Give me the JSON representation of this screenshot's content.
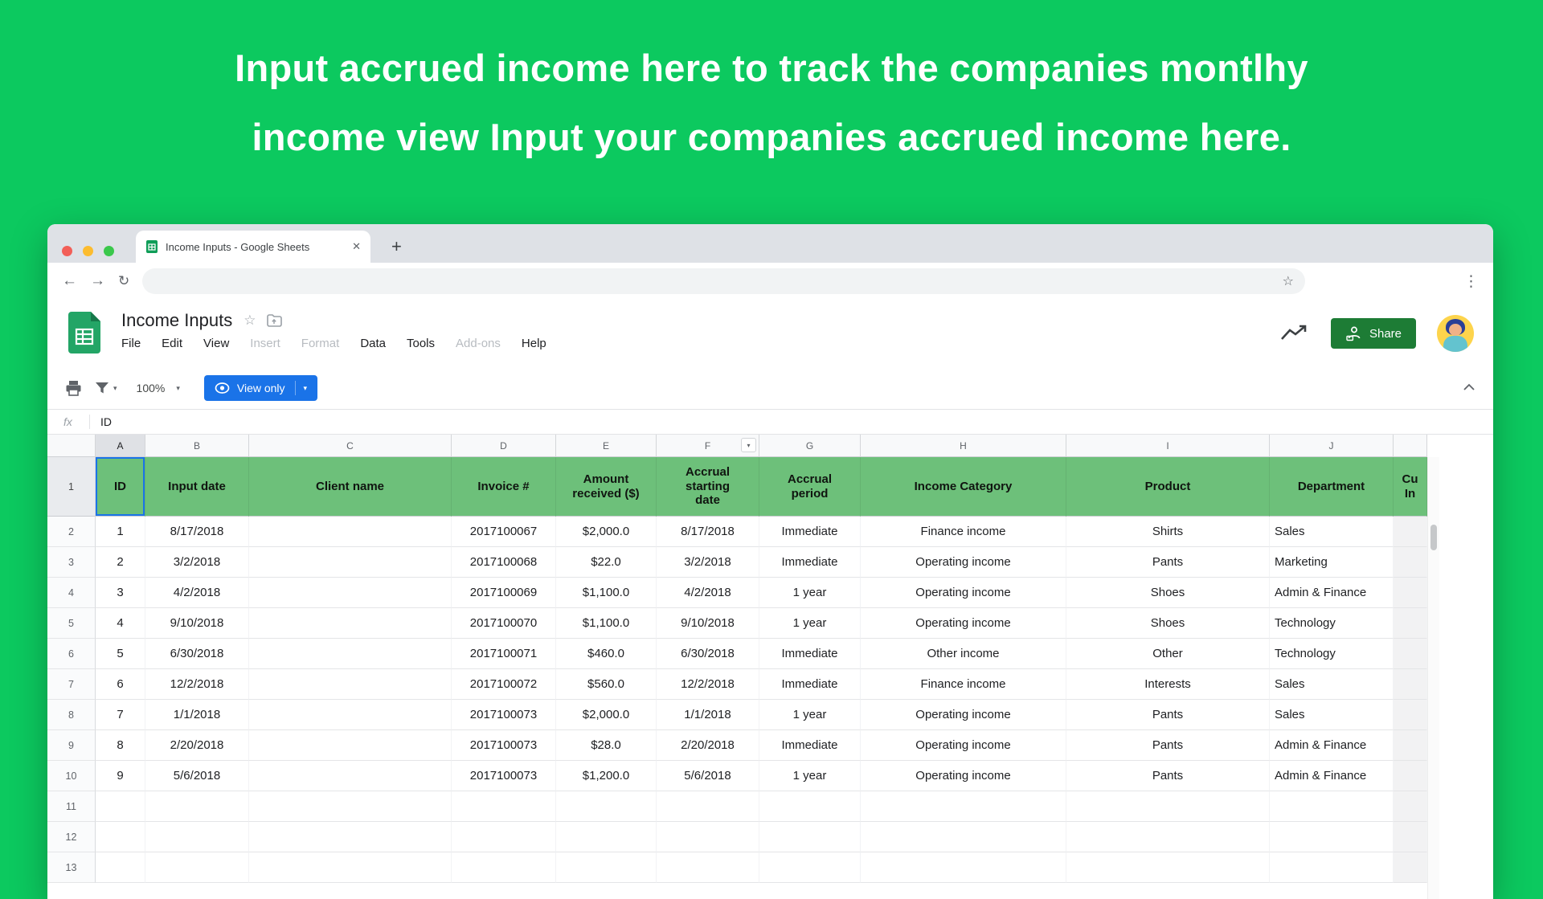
{
  "hero": {
    "line1": "Input accrued income here to track the companies montlhy",
    "line2": "income view Input your companies accrued income here."
  },
  "browser": {
    "tab_title": "Income Inputs - Google Sheets",
    "icons": {
      "close_tab": "✕",
      "new_tab": "+",
      "back": "←",
      "forward": "→",
      "refresh": "↻",
      "bookmark_star": "☆",
      "menu_dots": "⋮"
    }
  },
  "app": {
    "title": "Income Inputs",
    "title_star": "☆",
    "menus": [
      {
        "label": "File",
        "disabled": false
      },
      {
        "label": "Edit",
        "disabled": false
      },
      {
        "label": "View",
        "disabled": false
      },
      {
        "label": "Insert",
        "disabled": true
      },
      {
        "label": "Format",
        "disabled": true
      },
      {
        "label": "Data",
        "disabled": false
      },
      {
        "label": "Tools",
        "disabled": false
      },
      {
        "label": "Add-ons",
        "disabled": true
      },
      {
        "label": "Help",
        "disabled": false
      }
    ],
    "share_label": "Share",
    "toolbar": {
      "zoom": "100%",
      "view_only_label": "View only",
      "caret": "▾"
    },
    "formula": {
      "fx_label": "fx",
      "value": "ID"
    }
  },
  "sheet": {
    "column_letters": [
      "A",
      "B",
      "C",
      "D",
      "E",
      "F",
      "G",
      "H",
      "I",
      "J",
      ""
    ],
    "header_row_number": "1",
    "header_row": [
      "ID",
      "Input date",
      "Client name",
      "Invoice #",
      "Amount\nreceived ($)",
      "Accrual\nstarting\ndate",
      "Accrual\nperiod",
      "Income Category",
      "Product",
      "Department",
      "Cu\nIn"
    ],
    "rows": [
      {
        "n": "2",
        "cells": [
          "1",
          "8/17/2018",
          "",
          "2017100067",
          "$2,000.0",
          "8/17/2018",
          "Immediate",
          "Finance income",
          "Shirts",
          "Sales",
          ""
        ]
      },
      {
        "n": "3",
        "cells": [
          "2",
          "3/2/2018",
          "",
          "2017100068",
          "$22.0",
          "3/2/2018",
          "Immediate",
          "Operating income",
          "Pants",
          "Marketing",
          ""
        ]
      },
      {
        "n": "4",
        "cells": [
          "3",
          "4/2/2018",
          "",
          "2017100069",
          "$1,100.0",
          "4/2/2018",
          "1 year",
          "Operating income",
          "Shoes",
          "Admin & Finance",
          ""
        ]
      },
      {
        "n": "5",
        "cells": [
          "4",
          "9/10/2018",
          "",
          "2017100070",
          "$1,100.0",
          "9/10/2018",
          "1 year",
          "Operating income",
          "Shoes",
          "Technology",
          ""
        ]
      },
      {
        "n": "6",
        "cells": [
          "5",
          "6/30/2018",
          "",
          "2017100071",
          "$460.0",
          "6/30/2018",
          "Immediate",
          "Other income",
          "Other",
          "Technology",
          ""
        ]
      },
      {
        "n": "7",
        "cells": [
          "6",
          "12/2/2018",
          "",
          "2017100072",
          "$560.0",
          "12/2/2018",
          "Immediate",
          "Finance income",
          "Interests",
          "Sales",
          ""
        ]
      },
      {
        "n": "8",
        "cells": [
          "7",
          "1/1/2018",
          "",
          "2017100073",
          "$2,000.0",
          "1/1/2018",
          "1 year",
          "Operating income",
          "Pants",
          "Sales",
          ""
        ]
      },
      {
        "n": "9",
        "cells": [
          "8",
          "2/20/2018",
          "",
          "2017100073",
          "$28.0",
          "2/20/2018",
          "Immediate",
          "Operating income",
          "Pants",
          "Admin & Finance",
          ""
        ]
      },
      {
        "n": "10",
        "cells": [
          "9",
          "5/6/2018",
          "",
          "2017100073",
          "$1,200.0",
          "5/6/2018",
          "1 year",
          "Operating income",
          "Pants",
          "Admin & Finance",
          ""
        ]
      },
      {
        "n": "11",
        "cells": [
          "",
          "",
          "",
          "",
          "",
          "",
          "",
          "",
          "",
          "",
          ""
        ]
      },
      {
        "n": "12",
        "cells": [
          "",
          "",
          "",
          "",
          "",
          "",
          "",
          "",
          "",
          "",
          ""
        ]
      },
      {
        "n": "13",
        "cells": [
          "",
          "",
          "",
          "",
          "",
          "",
          "",
          "",
          "",
          "",
          ""
        ]
      }
    ]
  },
  "colors": {
    "background_green": "#0cc95f",
    "header_row_green": "#6dc07a",
    "share_button_green": "#1d7c35",
    "view_only_blue": "#1a73e8",
    "sheets_logo_green": "#0f9d58",
    "selection_blue": "#1a73e8"
  }
}
